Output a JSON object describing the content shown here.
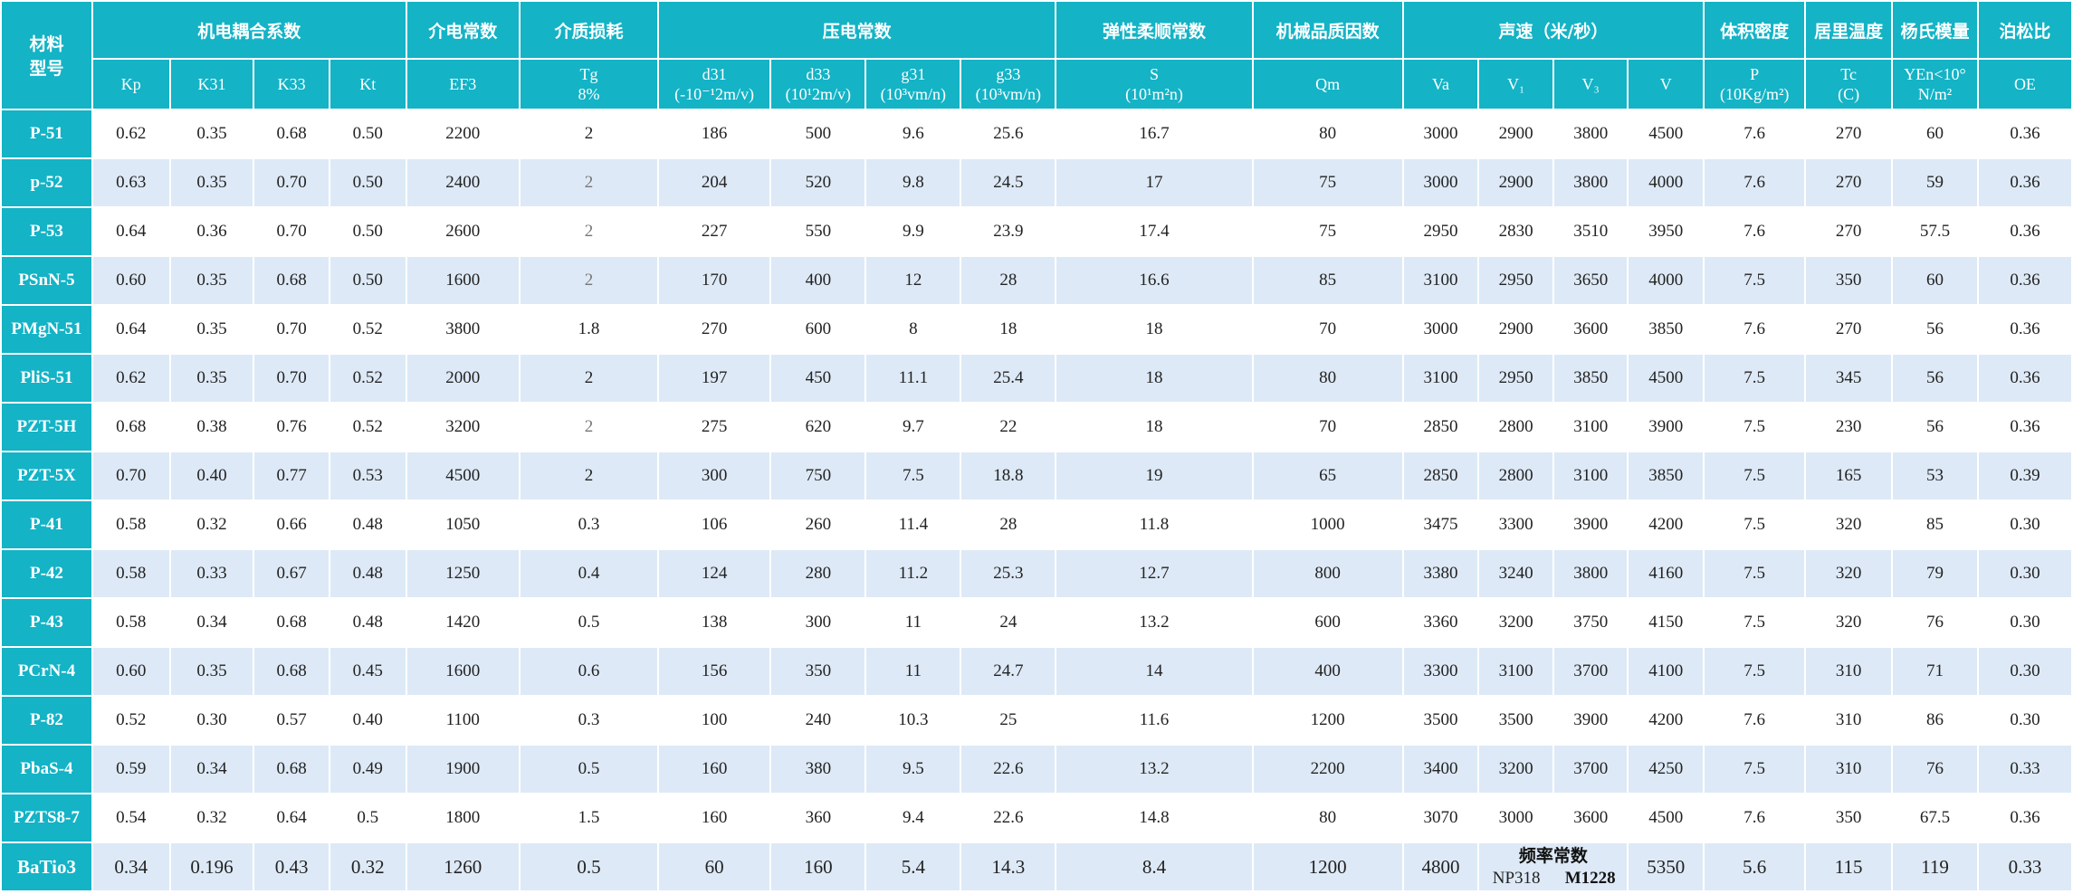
{
  "headers": {
    "material": "材料\n型号",
    "groups": {
      "coupling": "机电耦合系数",
      "dielectric": "介电常数",
      "loss": "介质损耗",
      "piezo": "压电常数",
      "compliance": "弹性柔顺常数",
      "qm": "机械品质因数",
      "sound": "声速（米/秒）",
      "density": "体积密度",
      "curie": "居里温度",
      "young": "杨氏模量",
      "poisson": "泊松比"
    },
    "sub": {
      "kp": "Kp",
      "k31": "K31",
      "k33": "K33",
      "kt": "Kt",
      "ef3": "EF3",
      "tg": [
        "Tg",
        "8%"
      ],
      "d31": [
        "d31",
        "(-10⁻¹2m/v)"
      ],
      "d33": [
        "d33",
        "(10¹2m/v)"
      ],
      "g31": [
        "g31",
        "(10³vm/n)"
      ],
      "g33": [
        "g33",
        "(10³vm/n)"
      ],
      "s": [
        "S",
        "(10¹m²n)"
      ],
      "qm": "Qm",
      "va": "Va",
      "v1": "V₁",
      "v3": "V₃",
      "v": "V",
      "p": [
        "P",
        "(10Kg/m²)"
      ],
      "tc": [
        "Tc",
        "(C)"
      ],
      "yen": [
        "YEn<10°",
        "N/m²"
      ],
      "oe": "OE"
    }
  },
  "rows": [
    {
      "name": "P-51",
      "v": [
        "0.62",
        "0.35",
        "0.68",
        "0.50",
        "2200",
        "2",
        "186",
        "500",
        "9.6",
        "25.6",
        "16.7",
        "80",
        "3000",
        "2900",
        "3800",
        "4500",
        "7.6",
        "270",
        "60",
        "0.36"
      ]
    },
    {
      "name": "p-52",
      "v": [
        "0.63",
        "0.35",
        "0.70",
        "0.50",
        "2400",
        "2",
        "204",
        "520",
        "9.8",
        "24.5",
        "17",
        "75",
        "3000",
        "2900",
        "3800",
        "4000",
        "7.6",
        "270",
        "59",
        "0.36"
      ]
    },
    {
      "name": "P-53",
      "v": [
        "0.64",
        "0.36",
        "0.70",
        "0.50",
        "2600",
        "2",
        "227",
        "550",
        "9.9",
        "23.9",
        "17.4",
        "75",
        "2950",
        "2830",
        "3510",
        "3950",
        "7.6",
        "270",
        "57.5",
        "0.36"
      ]
    },
    {
      "name": "PSnN-5",
      "v": [
        "0.60",
        "0.35",
        "0.68",
        "0.50",
        "1600",
        "2",
        "170",
        "400",
        "12",
        "28",
        "16.6",
        "85",
        "3100",
        "2950",
        "3650",
        "4000",
        "7.5",
        "350",
        "60",
        "0.36"
      ]
    },
    {
      "name": "PMgN-51",
      "v": [
        "0.64",
        "0.35",
        "0.70",
        "0.52",
        "3800",
        "1.8",
        "270",
        "600",
        "8",
        "18",
        "18",
        "70",
        "3000",
        "2900",
        "3600",
        "3850",
        "7.6",
        "270",
        "56",
        "0.36"
      ]
    },
    {
      "name": "PliS-51",
      "v": [
        "0.62",
        "0.35",
        "0.70",
        "0.52",
        "2000",
        "2",
        "197",
        "450",
        "11.1",
        "25.4",
        "18",
        "80",
        "3100",
        "2950",
        "3850",
        "4500",
        "7.5",
        "345",
        "56",
        "0.36"
      ]
    },
    {
      "name": "PZT-5H",
      "v": [
        "0.68",
        "0.38",
        "0.76",
        "0.52",
        "3200",
        "2",
        "275",
        "620",
        "9.7",
        "22",
        "18",
        "70",
        "2850",
        "2800",
        "3100",
        "3900",
        "7.5",
        "230",
        "56",
        "0.36"
      ]
    },
    {
      "name": "PZT-5X",
      "v": [
        "0.70",
        "0.40",
        "0.77",
        "0.53",
        "4500",
        "2",
        "300",
        "750",
        "7.5",
        "18.8",
        "19",
        "65",
        "2850",
        "2800",
        "3100",
        "3850",
        "7.5",
        "165",
        "53",
        "0.39"
      ]
    },
    {
      "name": "P-41",
      "v": [
        "0.58",
        "0.32",
        "0.66",
        "0.48",
        "1050",
        "0.3",
        "106",
        "260",
        "11.4",
        "28",
        "11.8",
        "1000",
        "3475",
        "3300",
        "3900",
        "4200",
        "7.5",
        "320",
        "85",
        "0.30"
      ]
    },
    {
      "name": "P-42",
      "v": [
        "0.58",
        "0.33",
        "0.67",
        "0.48",
        "1250",
        "0.4",
        "124",
        "280",
        "11.2",
        "25.3",
        "12.7",
        "800",
        "3380",
        "3240",
        "3800",
        "4160",
        "7.5",
        "320",
        "79",
        "0.30"
      ]
    },
    {
      "name": "P-43",
      "v": [
        "0.58",
        "0.34",
        "0.68",
        "0.48",
        "1420",
        "0.5",
        "138",
        "300",
        "11",
        "24",
        "13.2",
        "600",
        "3360",
        "3200",
        "3750",
        "4150",
        "7.5",
        "320",
        "76",
        "0.30"
      ]
    },
    {
      "name": "PCrN-4",
      "v": [
        "0.60",
        "0.35",
        "0.68",
        "0.45",
        "1600",
        "0.6",
        "156",
        "350",
        "11",
        "24.7",
        "14",
        "400",
        "3300",
        "3100",
        "3700",
        "4100",
        "7.5",
        "310",
        "71",
        "0.30"
      ]
    },
    {
      "name": "P-82",
      "v": [
        "0.52",
        "0.30",
        "0.57",
        "0.40",
        "1100",
        "0.3",
        "100",
        "240",
        "10.3",
        "25",
        "11.6",
        "1200",
        "3500",
        "3500",
        "3900",
        "4200",
        "7.6",
        "310",
        "86",
        "0.30"
      ]
    },
    {
      "name": "PbaS-4",
      "v": [
        "0.59",
        "0.34",
        "0.68",
        "0.49",
        "1900",
        "0.5",
        "160",
        "380",
        "9.5",
        "22.6",
        "13.2",
        "2200",
        "3400",
        "3200",
        "3700",
        "4250",
        "7.5",
        "310",
        "76",
        "0.33"
      ]
    },
    {
      "name": "PZTS8-7",
      "v": [
        "0.54",
        "0.32",
        "0.64",
        "0.5",
        "1800",
        "1.5",
        "160",
        "360",
        "9.4",
        "22.6",
        "14.8",
        "80",
        "3070",
        "3000",
        "3600",
        "4500",
        "7.6",
        "350",
        "67.5",
        "0.36"
      ]
    }
  ],
  "last_row": {
    "name": "BaTio3",
    "before": [
      "0.34",
      "0.196",
      "0.43",
      "0.32",
      "1260",
      "0.5",
      "60",
      "160",
      "5.4",
      "14.3",
      "8.4",
      "1200",
      "4800"
    ],
    "freq_title": "频率常数",
    "freq_np": "NP318",
    "freq_m": "M1228",
    "after": [
      "5350",
      "5.6",
      "115",
      "119",
      "0.33"
    ]
  },
  "gray_tg_rows": [
    1,
    2,
    3,
    6
  ]
}
